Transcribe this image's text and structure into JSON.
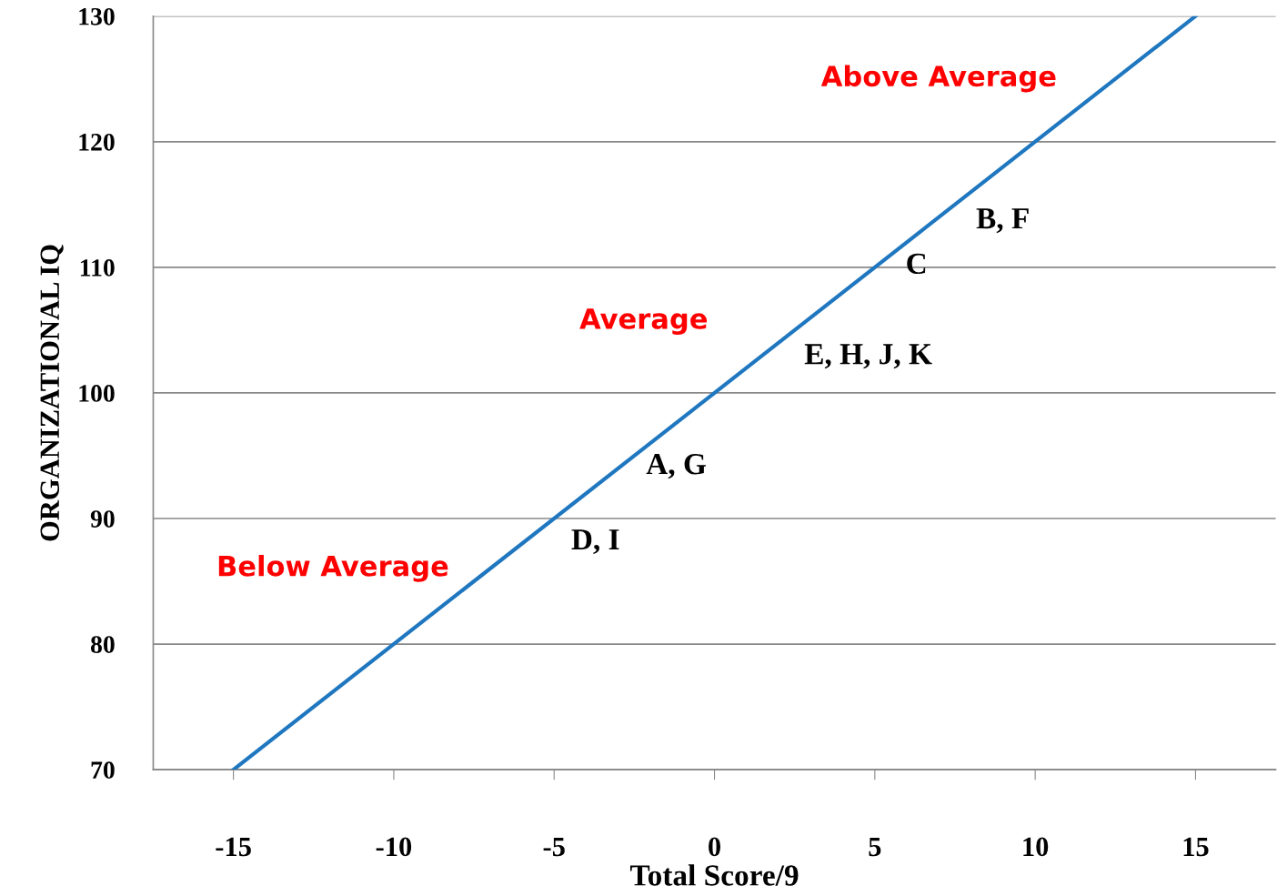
{
  "chart_data": {
    "type": "line",
    "xlabel": "Total Score/9",
    "ylabel": "ORGANIZATIONAL IQ",
    "x": [
      -15,
      15
    ],
    "series": [
      {
        "color": "#1f77c0",
        "values": [
          70,
          130
        ]
      }
    ],
    "xlim": [
      -17.5,
      17.5
    ],
    "ylim": [
      70,
      130
    ],
    "xticks": [
      -15,
      -10,
      -5,
      0,
      5,
      10,
      15
    ],
    "yticks": [
      70,
      80,
      90,
      100,
      110,
      120,
      130
    ],
    "grid": "y",
    "marker": "none",
    "line_style": "solid",
    "annotations": [
      "Above Average",
      "Average",
      "Below Average",
      "B, F",
      "C",
      "E, H, J, K",
      "A, G",
      "D, I"
    ]
  }
}
